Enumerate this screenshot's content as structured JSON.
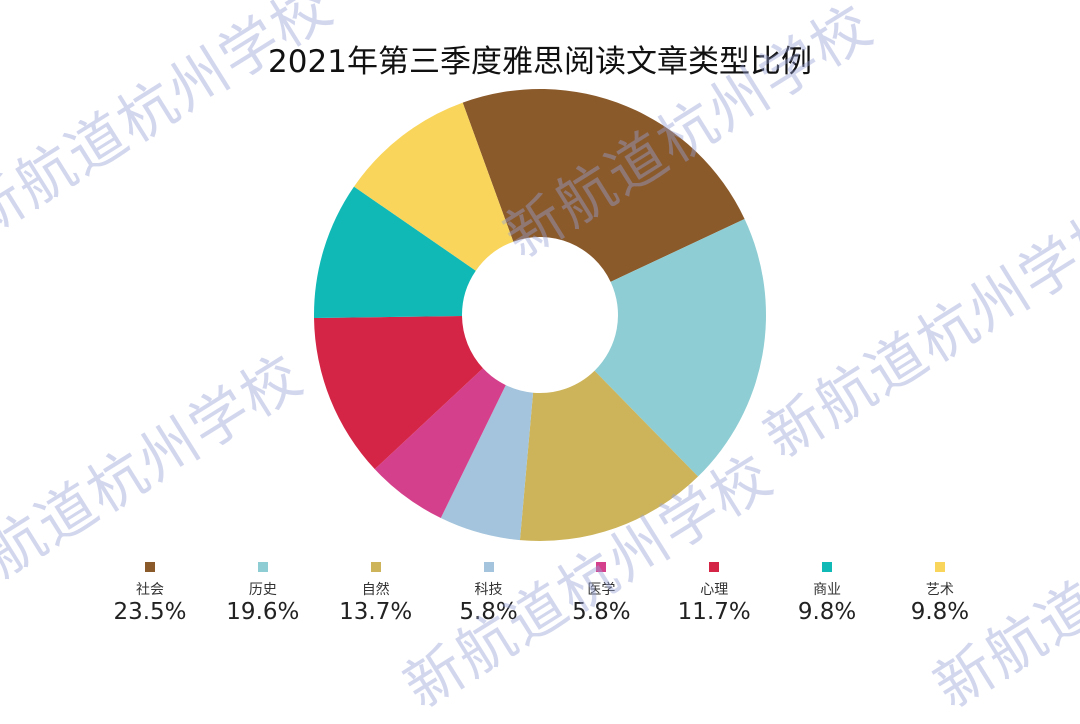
{
  "title": "2021年第三季度雅思阅读文章类型比例",
  "watermark": "新航道杭州学校",
  "chart_data": {
    "type": "pie",
    "variant": "donut",
    "title": "2021年第三季度雅思阅读文章类型比例",
    "categories": [
      "社会",
      "历史",
      "自然",
      "科技",
      "医学",
      "心理",
      "商业",
      "艺术"
    ],
    "values": [
      23.5,
      19.6,
      13.7,
      5.8,
      5.8,
      11.7,
      9.8,
      9.8
    ],
    "labels": [
      "23.5%",
      "19.6%",
      "13.7%",
      "5.8%",
      "5.8%",
      "11.7%",
      "9.8%",
      "9.8%"
    ],
    "colors": [
      "#8b5a2b",
      "#8ecdd3",
      "#cdb45a",
      "#a3c4dc",
      "#d5408c",
      "#d42546",
      "#11b9b6",
      "#f9d55b"
    ],
    "start_angle_deg": -20,
    "direction": "clockwise",
    "legend_position": "bottom"
  }
}
